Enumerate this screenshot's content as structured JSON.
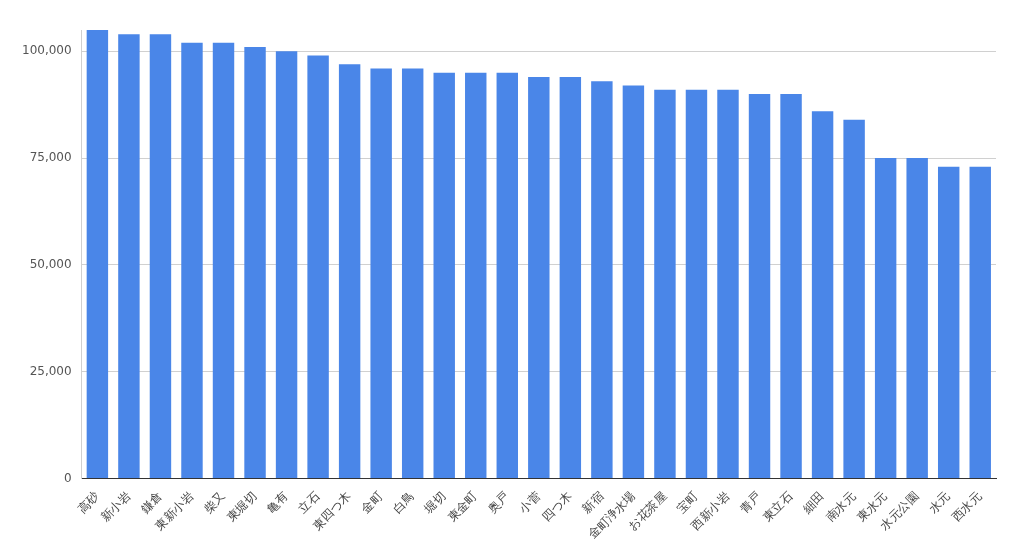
{
  "chart_data": {
    "type": "bar",
    "categories": [
      "高砂",
      "新小岩",
      "鎌倉",
      "東新小岩",
      "柴又",
      "東堀切",
      "亀有",
      "立石",
      "東四つ木",
      "金町",
      "白鳥",
      "堀切",
      "東金町",
      "奥戸",
      "小菅",
      "四つ木",
      "新宿",
      "金町浄水場",
      "お花茶屋",
      "宝町",
      "西新小岩",
      "青戸",
      "東立石",
      "細田",
      "南水元",
      "東水元",
      "水元公園",
      "水元",
      "西水元"
    ],
    "values": [
      105000,
      104000,
      104000,
      102000,
      102000,
      101000,
      100000,
      99000,
      97000,
      96000,
      96000,
      95000,
      95000,
      95000,
      94000,
      94000,
      93000,
      92000,
      91000,
      91000,
      91000,
      90000,
      90000,
      86000,
      84000,
      75000,
      75000,
      73000,
      73000
    ],
    "color": "#4a86e8",
    "ylim": [
      0,
      105000
    ],
    "yticks": [
      0,
      {
        "value": 25000,
        "label": "25,000"
      },
      {
        "value": 50000,
        "label": "50,000"
      },
      {
        "value": 75000,
        "label": "75,000"
      },
      {
        "value": 100000,
        "label": "100,000"
      }
    ],
    "grid": true
  }
}
